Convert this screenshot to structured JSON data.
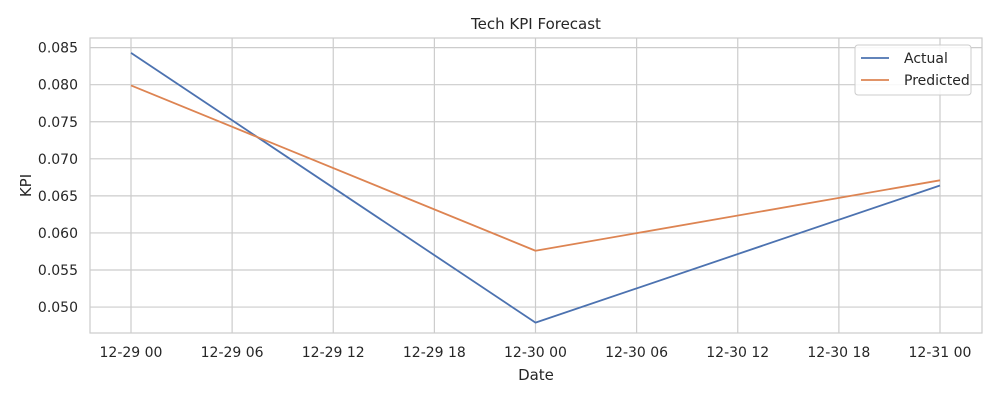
{
  "chart_data": {
    "type": "line",
    "title": "Tech KPI Forecast",
    "xlabel": "Date",
    "ylabel": "KPI",
    "x": [
      "2023-12-29 00:00",
      "2023-12-30 00:00",
      "2023-12-31 00:00"
    ],
    "x_tick_labels": [
      "12-29 00",
      "12-29 06",
      "12-29 12",
      "12-29 18",
      "12-30 00",
      "12-30 06",
      "12-30 12",
      "12-30 18",
      "12-31 00"
    ],
    "y_tick_labels": [
      "0.050",
      "0.055",
      "0.060",
      "0.065",
      "0.070",
      "0.075",
      "0.080",
      "0.085"
    ],
    "y_ticks": [
      0.05,
      0.055,
      0.06,
      0.065,
      0.07,
      0.075,
      0.08,
      0.085
    ],
    "ylim": [
      0.0465,
      0.0863
    ],
    "grid": true,
    "legend_position": "top-right",
    "series": [
      {
        "name": "Actual",
        "color": "#4c72b0",
        "values": [
          0.0843,
          0.0479,
          0.0664
        ]
      },
      {
        "name": "Predicted",
        "color": "#dd8452",
        "values": [
          0.0799,
          0.0576,
          0.0671
        ]
      }
    ]
  }
}
